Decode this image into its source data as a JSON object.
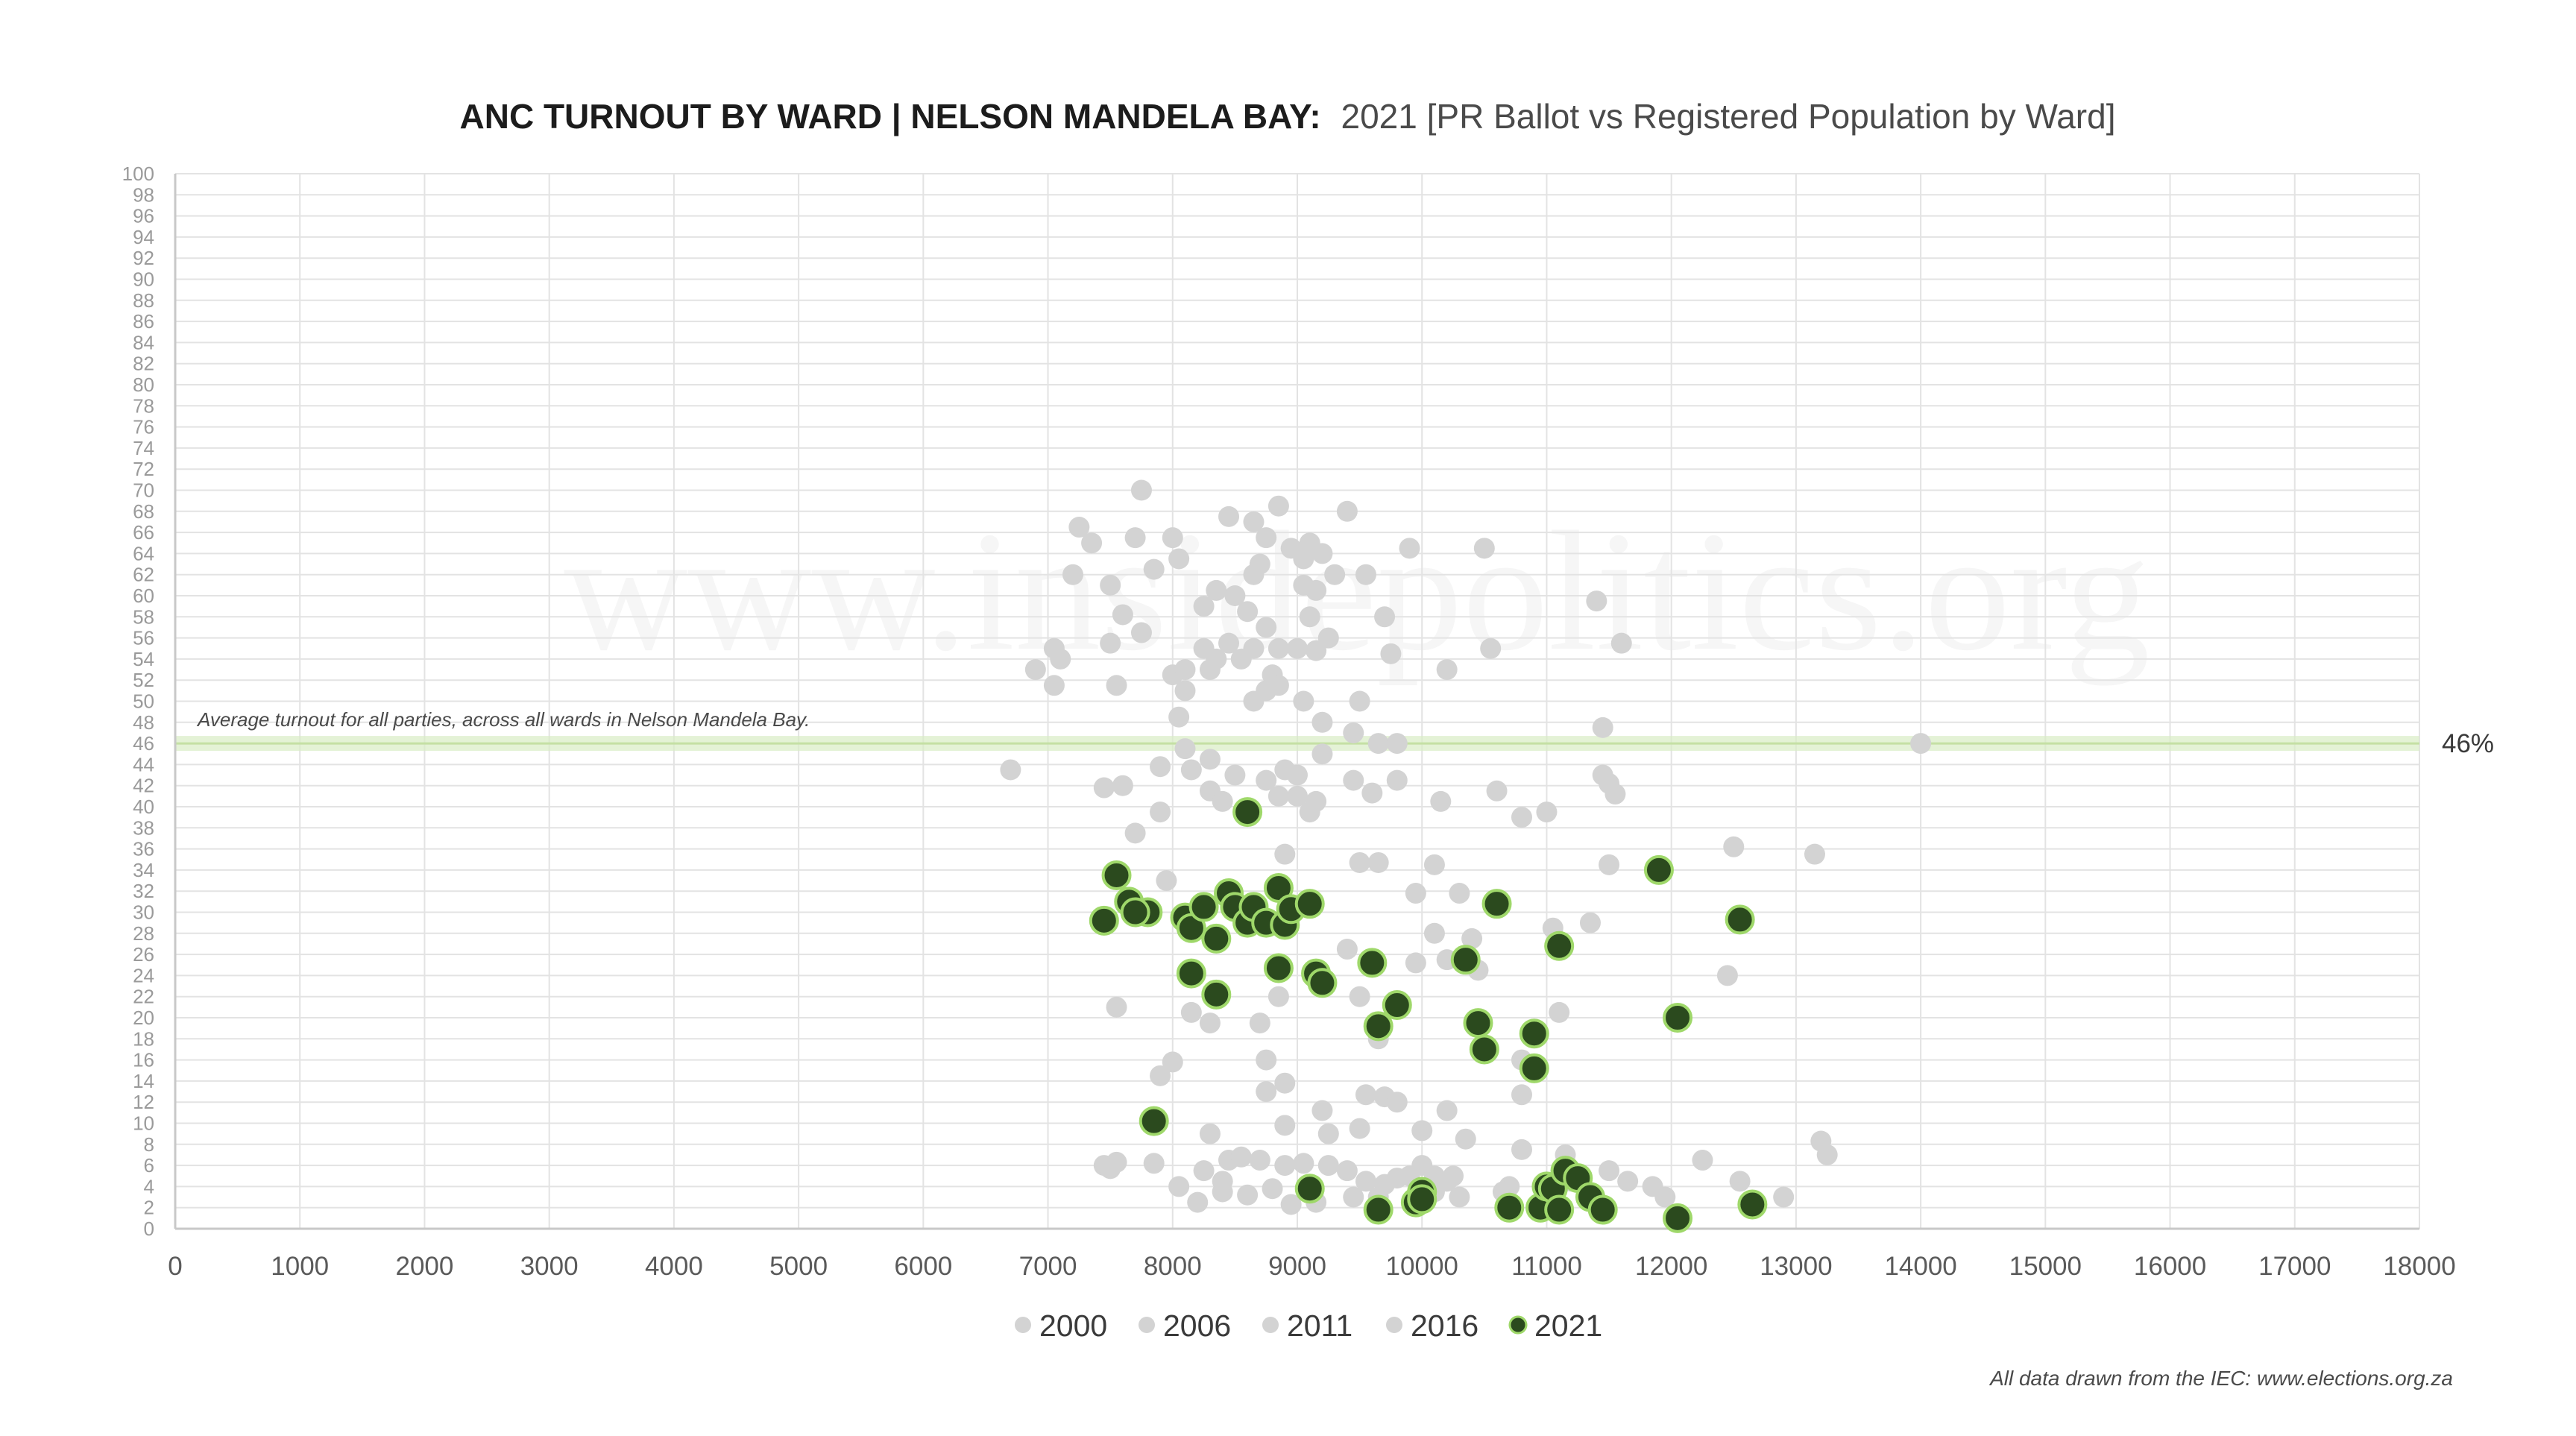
{
  "title": {
    "bold": "ANC TURNOUT BY WARD | NELSON MANDELA BAY:",
    "regular": "2021 [PR Ballot vs Registered Population by Ward]"
  },
  "watermark": "www.insidepolitics.org",
  "average_note": "Average turnout for all parties, across all wards in Nelson Mandela Bay.",
  "average_label": "46%",
  "source": "All data drawn from the IEC: www.elections.org.za",
  "colors": {
    "gray_point": "#d3d3d3",
    "green_fill": "#2b4a1e",
    "green_stroke": "#9fd86a",
    "average_band": "#d9ecc4"
  },
  "chart_data": {
    "type": "scatter",
    "title": "ANC TURNOUT BY WARD | NELSON MANDELA BAY: 2021 [PR Ballot vs Registered Population by Ward]",
    "xlabel": "",
    "ylabel": "",
    "xlim": [
      0,
      18000
    ],
    "ylim": [
      0,
      100
    ],
    "x_ticks": [
      "0",
      "1000",
      "2000",
      "3000",
      "4000",
      "5000",
      "6000",
      "7000",
      "8000",
      "9000",
      "10000",
      "11000",
      "12000",
      "13000",
      "14000",
      "15000",
      "16000",
      "17000",
      "18000"
    ],
    "y_ticks": [
      "0",
      "2",
      "4",
      "6",
      "8",
      "10",
      "12",
      "14",
      "16",
      "18",
      "20",
      "22",
      "24",
      "26",
      "28",
      "30",
      "32",
      "34",
      "36",
      "38",
      "40",
      "42",
      "44",
      "46",
      "48",
      "50",
      "52",
      "54",
      "56",
      "58",
      "60",
      "62",
      "64",
      "66",
      "68",
      "70",
      "72",
      "74",
      "76",
      "78",
      "80",
      "82",
      "84",
      "86",
      "88",
      "90",
      "92",
      "94",
      "96",
      "98",
      "100"
    ],
    "grid": true,
    "legend_position": "bottom",
    "reference_line": {
      "y": 46,
      "label": "46%"
    },
    "series": [
      {
        "name": "2000",
        "color": "#d3d3d3",
        "points": [
          [
            7750,
            70
          ],
          [
            7250,
            66.5
          ],
          [
            7350,
            65
          ],
          [
            7700,
            65.5
          ],
          [
            7200,
            62
          ],
          [
            7500,
            61
          ],
          [
            8000,
            65.5
          ],
          [
            8050,
            63.5
          ],
          [
            7850,
            62.5
          ],
          [
            7600,
            58.2
          ],
          [
            7750,
            56.5
          ],
          [
            7500,
            55.5
          ],
          [
            7050,
            55
          ],
          [
            7100,
            54
          ],
          [
            6900,
            53
          ],
          [
            7050,
            51.5
          ],
          [
            7550,
            51.5
          ],
          [
            8000,
            52.5
          ],
          [
            8100,
            53
          ],
          [
            8100,
            51
          ],
          [
            8050,
            48.5
          ],
          [
            6700,
            43.5
          ],
          [
            7450,
            41.8
          ],
          [
            7600,
            42
          ],
          [
            7900,
            43.8
          ],
          [
            7700,
            37.5
          ],
          [
            7900,
            39.5
          ],
          [
            7950,
            33
          ],
          [
            8100,
            45.5
          ],
          [
            8150,
            43.5
          ]
        ]
      },
      {
        "name": "2006",
        "color": "#d3d3d3",
        "points": [
          [
            8450,
            67.5
          ],
          [
            8650,
            67
          ],
          [
            8850,
            68.5
          ],
          [
            9400,
            68
          ],
          [
            8750,
            65.5
          ],
          [
            8950,
            64.5
          ],
          [
            9100,
            65
          ],
          [
            9200,
            64
          ],
          [
            9900,
            64.5
          ],
          [
            10500,
            64.5
          ],
          [
            8700,
            63
          ],
          [
            8650,
            62
          ],
          [
            9050,
            63.5
          ],
          [
            9300,
            62
          ],
          [
            9550,
            62
          ],
          [
            8500,
            60
          ],
          [
            8350,
            60.5
          ],
          [
            8250,
            59
          ],
          [
            8600,
            58.5
          ],
          [
            8750,
            57
          ],
          [
            9050,
            61
          ],
          [
            9150,
            60.5
          ],
          [
            9700,
            58
          ],
          [
            9100,
            58
          ],
          [
            8850,
            55
          ],
          [
            9000,
            55
          ],
          [
            9150,
            54.8
          ],
          [
            9250,
            56
          ],
          [
            9750,
            54.5
          ],
          [
            10200,
            53
          ],
          [
            10550,
            55
          ],
          [
            11400,
            59.5
          ],
          [
            11600,
            55.5
          ]
        ]
      },
      {
        "name": "2011",
        "color": "#d3d3d3",
        "points": [
          [
            8250,
            55
          ],
          [
            8350,
            54
          ],
          [
            8300,
            53
          ],
          [
            8450,
            55.5
          ],
          [
            8550,
            54
          ],
          [
            8650,
            55
          ],
          [
            8800,
            52.5
          ],
          [
            8850,
            51.5
          ],
          [
            8750,
            51
          ],
          [
            8650,
            50
          ],
          [
            9050,
            50
          ],
          [
            9200,
            48
          ],
          [
            9500,
            50
          ],
          [
            9450,
            47
          ],
          [
            9650,
            46
          ],
          [
            9800,
            46
          ],
          [
            14000,
            46
          ],
          [
            11450,
            47.5
          ],
          [
            8300,
            44.5
          ],
          [
            8500,
            43
          ],
          [
            8750,
            42.5
          ],
          [
            8900,
            43.5
          ],
          [
            9000,
            43
          ],
          [
            9200,
            45
          ],
          [
            9450,
            42.5
          ],
          [
            9800,
            42.5
          ],
          [
            8850,
            41
          ],
          [
            9000,
            41
          ],
          [
            9100,
            39.5
          ],
          [
            9150,
            40.5
          ],
          [
            9600,
            41.3
          ],
          [
            10150,
            40.5
          ],
          [
            10600,
            41.5
          ],
          [
            10800,
            39
          ],
          [
            11000,
            39.5
          ],
          [
            11450,
            43
          ],
          [
            11500,
            42.2
          ],
          [
            11550,
            41.2
          ],
          [
            12500,
            36.2
          ],
          [
            13150,
            35.5
          ],
          [
            8300,
            41.5
          ],
          [
            8400,
            40.5
          ]
        ]
      },
      {
        "name": "2016",
        "color": "#d3d3d3",
        "points": [
          [
            7550,
            21
          ],
          [
            8150,
            20.5
          ],
          [
            8300,
            19.5
          ],
          [
            8700,
            19.5
          ],
          [
            8850,
            22
          ],
          [
            8750,
            16
          ],
          [
            8900,
            13.8
          ],
          [
            8750,
            13
          ],
          [
            8000,
            15.8
          ],
          [
            7900,
            14.5
          ],
          [
            9200,
            11.2
          ],
          [
            9550,
            12.7
          ],
          [
            9700,
            12.5
          ],
          [
            9800,
            12
          ],
          [
            10200,
            11.2
          ],
          [
            10800,
            12.7
          ],
          [
            10800,
            16
          ],
          [
            11100,
            20.5
          ],
          [
            8900,
            35.5
          ],
          [
            9500,
            34.7
          ],
          [
            9650,
            34.7
          ],
          [
            10100,
            34.5
          ],
          [
            10300,
            31.8
          ],
          [
            9950,
            31.8
          ],
          [
            10100,
            28
          ],
          [
            10400,
            27.5
          ],
          [
            10200,
            25.5
          ],
          [
            9950,
            25.2
          ],
          [
            10450,
            24.5
          ],
          [
            11050,
            28.5
          ],
          [
            11350,
            29
          ],
          [
            11500,
            34.5
          ],
          [
            12450,
            24
          ],
          [
            9400,
            26.5
          ],
          [
            9500,
            22
          ],
          [
            9650,
            18
          ],
          [
            9500,
            9.5
          ],
          [
            9250,
            9
          ],
          [
            8900,
            9.8
          ],
          [
            10000,
            9.3
          ],
          [
            10350,
            8.5
          ],
          [
            10800,
            7.5
          ],
          [
            11150,
            7
          ],
          [
            12250,
            6.5
          ],
          [
            13200,
            8.3
          ],
          [
            13250,
            7
          ],
          [
            7450,
            6
          ],
          [
            7550,
            6.3
          ],
          [
            7500,
            5.7
          ],
          [
            7850,
            6.2
          ],
          [
            8300,
            9
          ],
          [
            8250,
            5.5
          ],
          [
            8400,
            4.5
          ],
          [
            8450,
            6.5
          ],
          [
            8550,
            6.8
          ],
          [
            8700,
            6.5
          ],
          [
            8900,
            6
          ],
          [
            9050,
            6.2
          ],
          [
            9250,
            6
          ],
          [
            9400,
            5.5
          ],
          [
            9450,
            3
          ],
          [
            9550,
            4.5
          ],
          [
            9700,
            4.2
          ],
          [
            9800,
            4.8
          ],
          [
            9900,
            5
          ],
          [
            10000,
            6
          ],
          [
            10100,
            5
          ],
          [
            10200,
            4.5
          ],
          [
            10250,
            5
          ],
          [
            10300,
            3
          ],
          [
            10100,
            3.5
          ],
          [
            10700,
            4
          ],
          [
            10650,
            3.5
          ],
          [
            11000,
            3.2
          ],
          [
            11200,
            4.5
          ],
          [
            11500,
            5.5
          ],
          [
            11650,
            4.5
          ],
          [
            11850,
            4
          ],
          [
            11950,
            3
          ],
          [
            12550,
            4.5
          ],
          [
            12900,
            3
          ],
          [
            8050,
            4
          ],
          [
            8200,
            2.5
          ],
          [
            8400,
            3.5
          ],
          [
            8600,
            3.2
          ],
          [
            8800,
            3.8
          ],
          [
            8950,
            2.3
          ],
          [
            9150,
            2.5
          ],
          [
            9650,
            3
          ]
        ]
      },
      {
        "name": "2021",
        "color": "#2b4a1e",
        "points": [
          [
            8600,
            39.5
          ],
          [
            7550,
            33.5
          ],
          [
            7650,
            31
          ],
          [
            7800,
            30
          ],
          [
            7700,
            30
          ],
          [
            7450,
            29.2
          ],
          [
            8100,
            29.5
          ],
          [
            8150,
            28.5
          ],
          [
            8250,
            30.5
          ],
          [
            8350,
            27.5
          ],
          [
            8450,
            31.8
          ],
          [
            8500,
            30.5
          ],
          [
            8600,
            29
          ],
          [
            8650,
            30.5
          ],
          [
            8750,
            29
          ],
          [
            8850,
            32.3
          ],
          [
            8900,
            28.8
          ],
          [
            8950,
            30.3
          ],
          [
            9100,
            30.8
          ],
          [
            8850,
            24.7
          ],
          [
            8150,
            24.2
          ],
          [
            8350,
            22.2
          ],
          [
            9150,
            24.2
          ],
          [
            9200,
            23.3
          ],
          [
            9600,
            25.2
          ],
          [
            9800,
            21.2
          ],
          [
            9650,
            19.2
          ],
          [
            10350,
            25.5
          ],
          [
            10450,
            19.5
          ],
          [
            10500,
            17
          ],
          [
            10600,
            30.8
          ],
          [
            10900,
            18.5
          ],
          [
            10900,
            15.2
          ],
          [
            11100,
            26.8
          ],
          [
            11900,
            34
          ],
          [
            12050,
            20
          ],
          [
            12550,
            29.3
          ],
          [
            7850,
            10.2
          ],
          [
            9100,
            3.8
          ],
          [
            9650,
            1.8
          ],
          [
            9950,
            2.5
          ],
          [
            10000,
            3.5
          ],
          [
            10000,
            2.8
          ],
          [
            10700,
            2
          ],
          [
            10950,
            2
          ],
          [
            11000,
            4
          ],
          [
            11050,
            3.8
          ],
          [
            11100,
            1.8
          ],
          [
            11150,
            5.5
          ],
          [
            11250,
            4.8
          ],
          [
            11350,
            3
          ],
          [
            11450,
            1.8
          ],
          [
            12050,
            1
          ],
          [
            12650,
            2.3
          ]
        ]
      }
    ]
  },
  "legend": {
    "items": [
      {
        "label": "2000",
        "style": "gray"
      },
      {
        "label": "2006",
        "style": "gray"
      },
      {
        "label": "2011",
        "style": "gray"
      },
      {
        "label": "2016",
        "style": "gray"
      },
      {
        "label": "2021",
        "style": "green"
      }
    ]
  }
}
